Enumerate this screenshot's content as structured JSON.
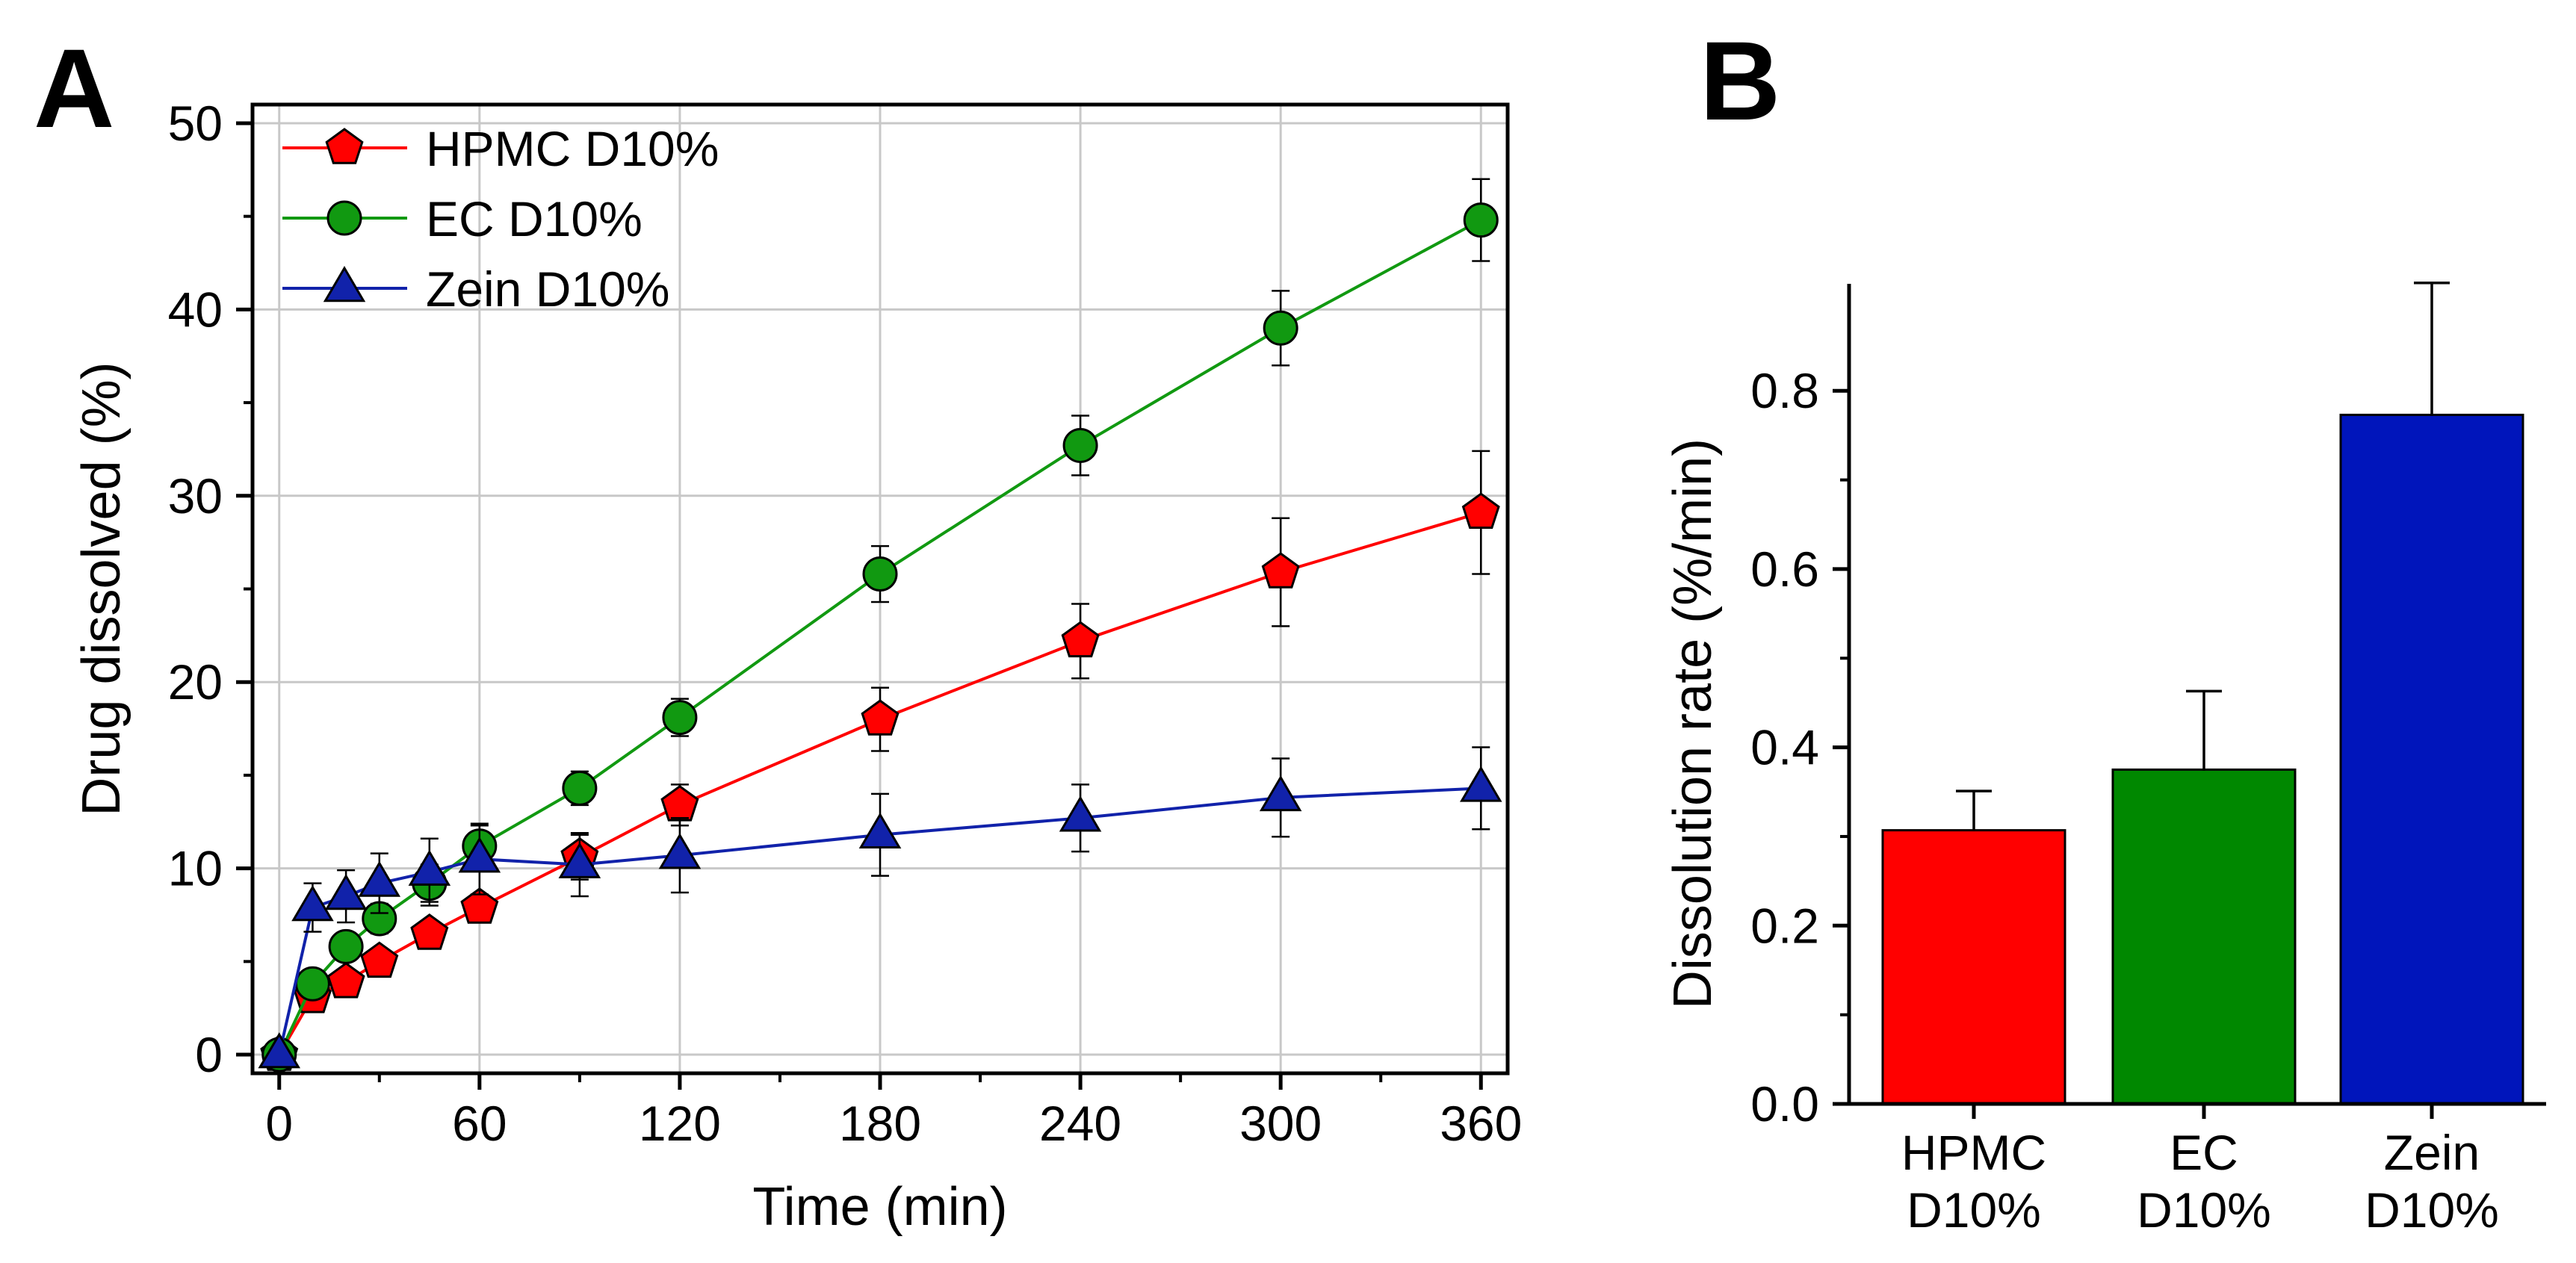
{
  "chart_data": [
    {
      "panel": "A",
      "type": "line",
      "title": "",
      "xlabel": "Time (min)",
      "ylabel": "Drug dissolved (%)",
      "xlim": [
        -8,
        368
      ],
      "ylim": [
        -1,
        51
      ],
      "xticks": [
        0,
        60,
        120,
        180,
        240,
        300,
        360
      ],
      "yticks": [
        0,
        10,
        20,
        30,
        40,
        50
      ],
      "grid": true,
      "legend": "top-left",
      "x": [
        0,
        10,
        20,
        30,
        45,
        60,
        90,
        120,
        180,
        240,
        300,
        360
      ],
      "series": [
        {
          "name": "HPMC D10%",
          "color": "#ff0000",
          "marker": "pentagon",
          "values": [
            0,
            3.1,
            3.9,
            5.0,
            6.5,
            7.9,
            10.6,
            13.4,
            18.0,
            22.2,
            25.9,
            29.1
          ],
          "errors": [
            0,
            0.5,
            0.4,
            0.5,
            0.6,
            0.6,
            1.2,
            1.1,
            1.7,
            2.0,
            2.9,
            3.3
          ]
        },
        {
          "name": "EC D10%",
          "color": "#119911",
          "marker": "circle",
          "values": [
            0,
            3.8,
            5.8,
            7.3,
            9.2,
            11.2,
            14.3,
            18.1,
            25.8,
            32.7,
            39.0,
            44.8
          ],
          "errors": [
            0,
            0.6,
            0.7,
            0.8,
            1.0,
            1.1,
            0.9,
            1.0,
            1.5,
            1.6,
            2.0,
            2.2
          ]
        },
        {
          "name": "Zein D10%",
          "color": "#1122aa",
          "marker": "triangle",
          "values": [
            0,
            7.9,
            8.5,
            9.2,
            9.8,
            10.5,
            10.2,
            10.7,
            11.8,
            12.7,
            13.8,
            14.3
          ],
          "errors": [
            0,
            1.3,
            1.4,
            1.6,
            1.8,
            1.9,
            1.7,
            2.0,
            2.2,
            1.8,
            2.1,
            2.2
          ]
        }
      ]
    },
    {
      "panel": "B",
      "type": "bar",
      "title": "",
      "xlabel": "",
      "ylabel": "Dissolution rate (%/min)",
      "ylim": [
        0,
        0.92
      ],
      "yticks": [
        "0.0",
        "0.2",
        "0.4",
        "0.6",
        "0.8"
      ],
      "categories": [
        [
          "HPMC",
          "D10%"
        ],
        [
          "EC",
          "D10%"
        ],
        [
          "Zein",
          "D10%"
        ]
      ],
      "values": [
        0.307,
        0.375,
        0.773
      ],
      "errors": [
        0.044,
        0.088,
        0.148
      ],
      "colors": [
        "#ff0000",
        "#008800",
        "#0015bb"
      ]
    }
  ]
}
